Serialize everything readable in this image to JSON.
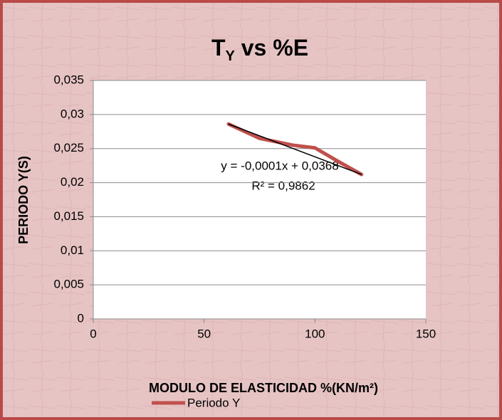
{
  "chart_data": {
    "type": "line",
    "title_parts": [
      "T",
      "Y",
      " vs %E"
    ],
    "x_label": "MODULO DE ELASTICIDAD %(KN/m²)",
    "y_label": "PERIODO Y(S)",
    "xlim": [
      0,
      150
    ],
    "xticks": [
      0,
      50,
      100,
      150
    ],
    "ylim": [
      0,
      0.035
    ],
    "yticks": [
      0,
      {
        "value": 0.005,
        "label": "0,005"
      },
      {
        "value": 0.01,
        "label": "0,01"
      },
      {
        "value": 0.015,
        "label": "0,015"
      },
      {
        "value": 0.02,
        "label": "0,02"
      },
      {
        "value": 0.025,
        "label": "0,025"
      },
      {
        "value": 0.03,
        "label": "0,03"
      },
      {
        "value": 0.035,
        "label": "0,035"
      }
    ],
    "grid": true,
    "legend": "bottom",
    "series": [
      {
        "name": "Periodo Y",
        "color": "#c0504d",
        "x": [
          61,
          75,
          90,
          100,
          110,
          121
        ],
        "values": [
          0.0286,
          0.0265,
          0.0255,
          0.0251,
          0.0232,
          0.0212
        ]
      }
    ],
    "trendline": {
      "color": "#000000",
      "x": [
        61,
        121
      ],
      "values": [
        0.0286,
        0.0212
      ]
    },
    "annotations": [
      "y = -0,0001x + 0,0368",
      "R² = 0,9862"
    ]
  }
}
